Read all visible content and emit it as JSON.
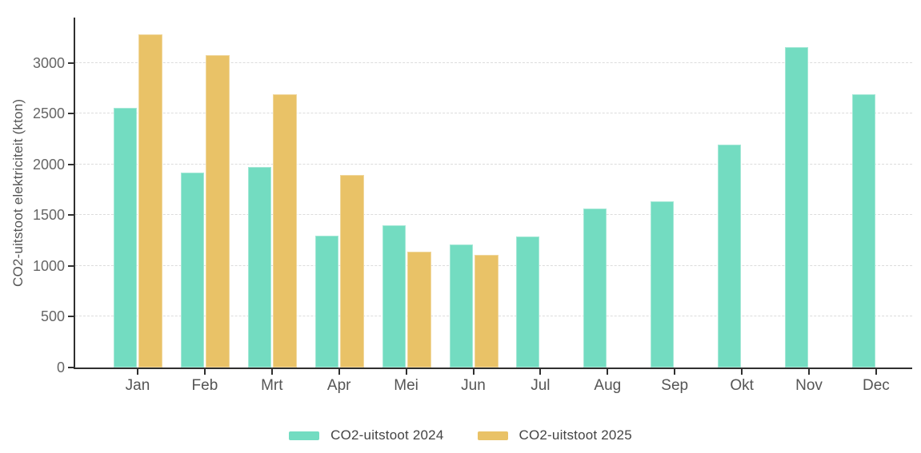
{
  "chart_data": {
    "type": "bar",
    "title": "",
    "xlabel": "",
    "ylabel": "CO2-uitstoot elektriciteit (kton)",
    "categories": [
      "Jan",
      "Feb",
      "Mrt",
      "Apr",
      "Mei",
      "Jun",
      "Jul",
      "Aug",
      "Sep",
      "Okt",
      "Nov",
      "Dec"
    ],
    "series": [
      {
        "name": "CO2-uitstoot 2024",
        "color": "#73dcc1",
        "values": [
          2560,
          1920,
          1980,
          1300,
          1400,
          1210,
          1290,
          1570,
          1640,
          2200,
          3160,
          2690
        ]
      },
      {
        "name": "CO2-uitstoot 2025",
        "color": "#e9c267",
        "values": [
          3280,
          3080,
          2690,
          1900,
          1140,
          1110,
          null,
          null,
          null,
          null,
          null,
          null
        ]
      }
    ],
    "ylim": [
      0,
      3450
    ],
    "yticks": [
      0,
      500,
      1000,
      1500,
      2000,
      2500,
      3000
    ],
    "grid": "horizontal-dashed",
    "legend_position": "bottom",
    "axis_color": "#2f2f2f",
    "gridline_color": "#dcdcdc",
    "tick_label_color": "#666666"
  }
}
